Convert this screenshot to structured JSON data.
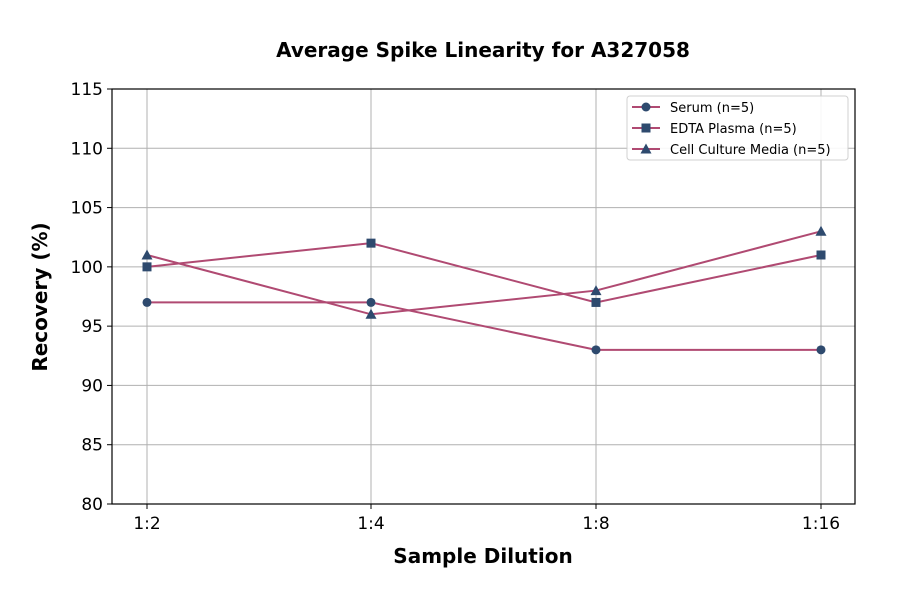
{
  "chart_data": {
    "type": "line",
    "title": "Average Spike Linearity for A327058",
    "xlabel": "Sample Dilution",
    "ylabel": "Recovery (%)",
    "categories": [
      "1:2",
      "1:4",
      "1:8",
      "1:16"
    ],
    "ylim": [
      80,
      115
    ],
    "yticks": [
      80,
      85,
      90,
      95,
      100,
      105,
      110,
      115
    ],
    "grid": true,
    "legend_placement": "top-right",
    "line_color": "#b04a72",
    "marker_color": "#2e4a6e",
    "series": [
      {
        "name": "Serum (n=5)",
        "marker": "circle",
        "values": [
          97,
          97,
          93,
          93
        ]
      },
      {
        "name": "EDTA Plasma (n=5)",
        "marker": "square",
        "values": [
          100,
          102,
          97,
          101
        ]
      },
      {
        "name": "Cell Culture Media (n=5)",
        "marker": "triangle",
        "values": [
          101,
          96,
          98,
          103
        ]
      }
    ]
  }
}
